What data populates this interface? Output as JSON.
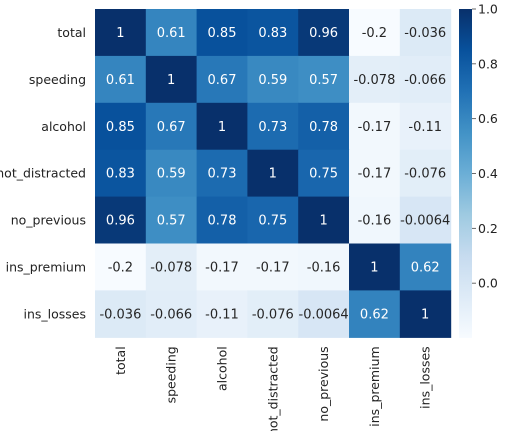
{
  "chart_data": {
    "type": "heatmap",
    "title": "",
    "xlabel": "",
    "ylabel": "",
    "row_labels": [
      "total",
      "speeding",
      "alcohol",
      "not_distracted",
      "no_previous",
      "ins_premium",
      "ins_losses"
    ],
    "col_labels": [
      "total",
      "speeding",
      "alcohol",
      "not_distracted",
      "no_previous",
      "ins_premium",
      "ins_losses"
    ],
    "values": [
      [
        1,
        0.61,
        0.85,
        0.83,
        0.96,
        -0.2,
        -0.036
      ],
      [
        0.61,
        1,
        0.67,
        0.59,
        0.57,
        -0.078,
        -0.066
      ],
      [
        0.85,
        0.67,
        1,
        0.73,
        0.78,
        -0.17,
        -0.11
      ],
      [
        0.83,
        0.59,
        0.73,
        1,
        0.75,
        -0.17,
        -0.076
      ],
      [
        0.96,
        0.57,
        0.78,
        0.75,
        1,
        -0.16,
        -0.0064
      ],
      [
        -0.2,
        -0.078,
        -0.17,
        -0.17,
        -0.16,
        1,
        0.62
      ],
      [
        -0.036,
        -0.066,
        -0.11,
        -0.076,
        -0.0064,
        0.62,
        1
      ]
    ],
    "annotations": [
      [
        "1",
        "0.61",
        "0.85",
        "0.83",
        "0.96",
        "-0.2",
        "-0.036"
      ],
      [
        "0.61",
        "1",
        "0.67",
        "0.59",
        "0.57",
        "-0.078",
        "-0.066"
      ],
      [
        "0.85",
        "0.67",
        "1",
        "0.73",
        "0.78",
        "-0.17",
        "-0.11"
      ],
      [
        "0.83",
        "0.59",
        "0.73",
        "1",
        "0.75",
        "-0.17",
        "-0.076"
      ],
      [
        "0.96",
        "0.57",
        "0.78",
        "0.75",
        "1",
        "-0.16",
        "-0.0064"
      ],
      [
        "-0.2",
        "-0.078",
        "-0.17",
        "-0.17",
        "-0.16",
        "1",
        "0.62"
      ],
      [
        "-0.036",
        "-0.066",
        "-0.11",
        "-0.076",
        "-0.0064",
        "0.62",
        "1"
      ]
    ],
    "colormap": "Blues",
    "colormap_stops": [
      "#f7fbff",
      "#deebf7",
      "#c6dbef",
      "#9ecae1",
      "#6baed6",
      "#4292c6",
      "#2171b5",
      "#08519c",
      "#08306b"
    ],
    "vmin": -0.2,
    "vmax": 1.0,
    "colorbar": {
      "ticks": [
        0.0,
        0.2,
        0.4,
        0.6,
        0.8,
        1.0
      ],
      "tick_labels": [
        "0.0",
        "0.2",
        "0.4",
        "0.6",
        "0.8",
        "1.0"
      ],
      "position": "right"
    },
    "grid": false
  }
}
